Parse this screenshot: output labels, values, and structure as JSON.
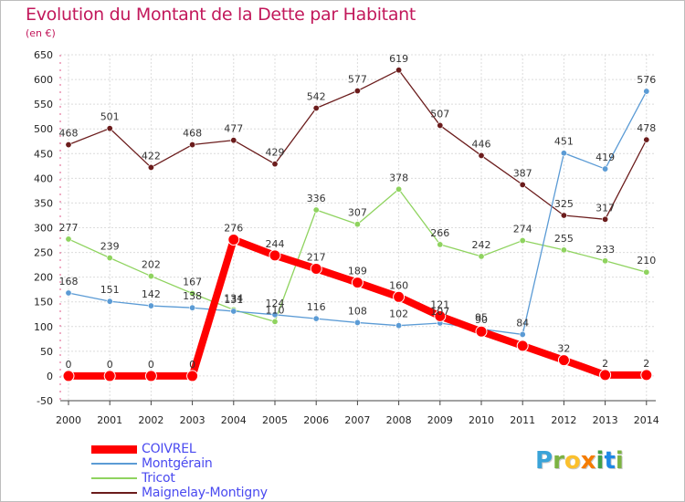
{
  "title": "Evolution du Montant de la Dette par Habitant",
  "subtitle": "(en €)",
  "logo": {
    "letters": [
      {
        "ch": "P",
        "color": "#3aa3d8"
      },
      {
        "ch": "r",
        "color": "#7cb342"
      },
      {
        "ch": "o",
        "color": "#fbc02d"
      },
      {
        "ch": "x",
        "color": "#f57c00"
      },
      {
        "ch": "i",
        "color": "#43a047"
      },
      {
        "ch": "t",
        "color": "#1e88e5"
      },
      {
        "ch": "i",
        "color": "#7cb342"
      }
    ]
  },
  "chart_data": {
    "type": "line",
    "title": "Evolution du Montant de la Dette par Habitant",
    "ylabel": "(en €)",
    "xlabel": "",
    "x": [
      "2000",
      "2001",
      "2002",
      "2003",
      "2004",
      "2005",
      "2006",
      "2007",
      "2008",
      "2009",
      "2010",
      "2011",
      "2012",
      "2013",
      "2014"
    ],
    "ylim": [
      -50,
      650
    ],
    "yticks": [
      -50,
      0,
      50,
      100,
      150,
      200,
      250,
      300,
      350,
      400,
      450,
      500,
      550,
      600,
      650
    ],
    "grid": true,
    "legend_position": "bottom-left",
    "series": [
      {
        "name": "COIVREL",
        "color": "#ff0000",
        "values": [
          0,
          0,
          0,
          0,
          276,
          244,
          217,
          189,
          160,
          121,
          90,
          61,
          32,
          2,
          2
        ],
        "labels": [
          "0",
          "0",
          "0",
          "0",
          "276",
          "244",
          "217",
          "189",
          "160",
          "121",
          "90",
          "",
          "32",
          "2",
          "2"
        ]
      },
      {
        "name": "Montgérain",
        "color": "#5b9bd5",
        "values": [
          168,
          151,
          142,
          138,
          131,
          124,
          116,
          108,
          102,
          107,
          95,
          84,
          451,
          419,
          576
        ],
        "labels": [
          "168",
          "151",
          "142",
          "138",
          "131",
          "124",
          "116",
          "108",
          "102",
          "107",
          "95",
          "84",
          "451",
          "419",
          "576"
        ]
      },
      {
        "name": "Tricot",
        "color": "#8fd35f",
        "values": [
          277,
          239,
          202,
          167,
          134,
          110,
          336,
          307,
          378,
          266,
          242,
          274,
          255,
          233,
          210
        ],
        "labels": [
          "277",
          "239",
          "202",
          "167",
          "134",
          "110",
          "336",
          "307",
          "378",
          "266",
          "242",
          "274",
          "255",
          "233",
          "210"
        ]
      },
      {
        "name": "Maignelay-Montigny",
        "color": "#6b1c1c",
        "values": [
          468,
          501,
          422,
          468,
          477,
          429,
          542,
          577,
          619,
          507,
          446,
          387,
          325,
          317,
          478
        ],
        "labels": [
          "468",
          "501",
          "422",
          "468",
          "477",
          "429",
          "542",
          "577",
          "619",
          "507",
          "446",
          "387",
          "325",
          "317",
          "478"
        ]
      }
    ]
  }
}
